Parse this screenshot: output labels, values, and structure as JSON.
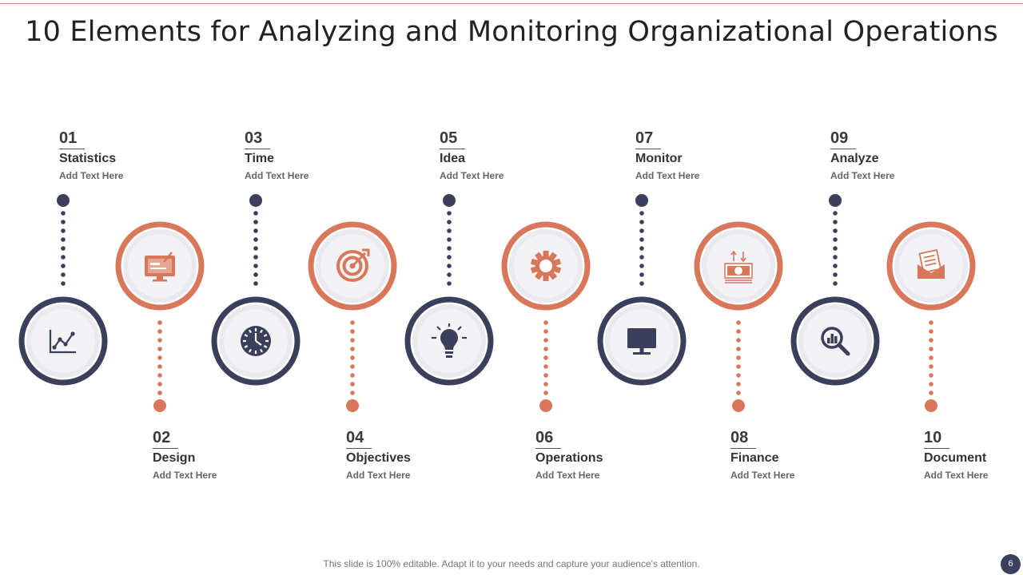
{
  "slide": {
    "title": "10 Elements for Analyzing and Monitoring Organizational Operations",
    "footer": "This slide is 100% editable. Adapt it to your needs and capture your audience's attention.",
    "page_number": "6"
  },
  "colors": {
    "navy": "#3b3f5c",
    "coral": "#d9775b",
    "light_ring": "#e9e9ee"
  },
  "elements": [
    {
      "number": "01",
      "title": "Statistics",
      "desc": "Add  Text Here",
      "icon": "line-chart-icon",
      "color": "navy"
    },
    {
      "number": "02",
      "title": "Design",
      "desc": "Add  Text Here",
      "icon": "design-monitor-icon",
      "color": "coral"
    },
    {
      "number": "03",
      "title": "Time",
      "desc": "Add  Text Here",
      "icon": "clock-icon",
      "color": "navy"
    },
    {
      "number": "04",
      "title": "Objectives",
      "desc": "Add  Text Here",
      "icon": "target-icon",
      "color": "coral"
    },
    {
      "number": "05",
      "title": "Idea",
      "desc": "Add  Text Here",
      "icon": "lightbulb-icon",
      "color": "navy"
    },
    {
      "number": "06",
      "title": "Operations",
      "desc": "Add  Text Here",
      "icon": "gear-icon",
      "color": "coral"
    },
    {
      "number": "07",
      "title": "Monitor",
      "desc": "Add  Text Here",
      "icon": "monitor-icon",
      "color": "navy"
    },
    {
      "number": "08",
      "title": "Finance",
      "desc": "Add  Text Here",
      "icon": "money-icon",
      "color": "coral"
    },
    {
      "number": "09",
      "title": "Analyze",
      "desc": "Add  Text Here",
      "icon": "magnifier-chart-icon",
      "color": "navy"
    },
    {
      "number": "10",
      "title": "Document",
      "desc": "Add  Text Here",
      "icon": "document-envelope-icon",
      "color": "coral"
    }
  ]
}
